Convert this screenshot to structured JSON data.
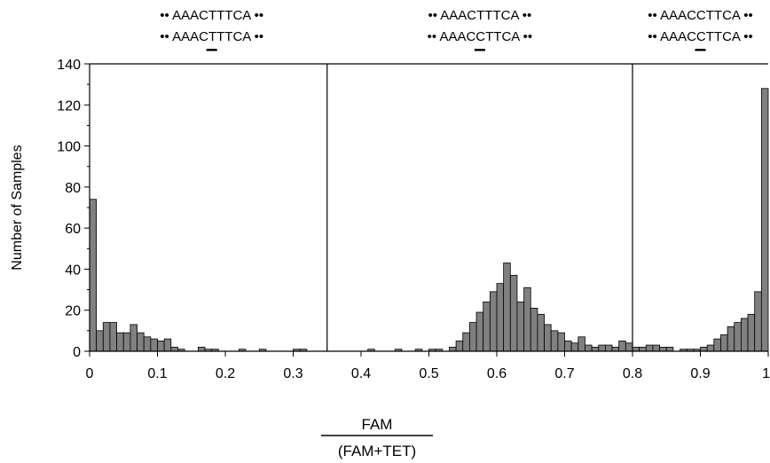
{
  "chart_data": {
    "type": "bar",
    "xlabel_numerator": "FAM",
    "xlabel_denominator": "(FAM+TET)",
    "ylabel": "Number of Samples",
    "xlim": [
      0,
      1
    ],
    "ylim": [
      0,
      140
    ],
    "x_ticks": [
      "0",
      "0.1",
      "0.2",
      "0.3",
      "0.4",
      "0.5",
      "0.6",
      "0.7",
      "0.8",
      "0.9",
      "1"
    ],
    "y_ticks": [
      "0",
      "20",
      "40",
      "60",
      "80",
      "100",
      "120",
      "140"
    ],
    "dividers": [
      0.35,
      0.8
    ],
    "bin_width": 0.01,
    "x": [
      0.0,
      0.01,
      0.02,
      0.03,
      0.04,
      0.05,
      0.06,
      0.07,
      0.08,
      0.09,
      0.1,
      0.11,
      0.12,
      0.13,
      0.14,
      0.15,
      0.16,
      0.17,
      0.18,
      0.19,
      0.2,
      0.21,
      0.22,
      0.23,
      0.24,
      0.25,
      0.26,
      0.27,
      0.28,
      0.29,
      0.3,
      0.31,
      0.32,
      0.33,
      0.34,
      0.35,
      0.36,
      0.37,
      0.38,
      0.39,
      0.4,
      0.41,
      0.42,
      0.43,
      0.44,
      0.45,
      0.46,
      0.47,
      0.48,
      0.49,
      0.5,
      0.51,
      0.52,
      0.53,
      0.54,
      0.55,
      0.56,
      0.57,
      0.58,
      0.59,
      0.6,
      0.61,
      0.62,
      0.63,
      0.64,
      0.65,
      0.66,
      0.67,
      0.68,
      0.69,
      0.7,
      0.71,
      0.72,
      0.73,
      0.74,
      0.75,
      0.76,
      0.77,
      0.78,
      0.79,
      0.8,
      0.81,
      0.82,
      0.83,
      0.84,
      0.85,
      0.86,
      0.87,
      0.88,
      0.89,
      0.9,
      0.91,
      0.92,
      0.93,
      0.94,
      0.95,
      0.96,
      0.97,
      0.98,
      0.99
    ],
    "values": [
      74,
      10,
      14,
      14,
      9,
      9,
      13,
      9,
      7,
      6,
      5,
      6,
      2,
      1,
      0,
      0,
      2,
      1,
      1,
      0,
      0,
      0,
      1,
      0,
      0,
      1,
      0,
      0,
      0,
      0,
      1,
      1,
      0,
      0,
      0,
      0,
      0,
      0,
      0,
      0,
      0,
      1,
      0,
      0,
      0,
      1,
      0,
      0,
      1,
      0,
      1,
      1,
      0,
      2,
      5,
      9,
      14,
      19,
      24,
      29,
      33,
      43,
      37,
      24,
      31,
      21,
      18,
      13,
      10,
      9,
      5,
      4,
      7,
      3,
      2,
      3,
      3,
      2,
      5,
      4,
      2,
      2,
      3,
      3,
      2,
      2,
      0,
      1,
      1,
      1,
      2,
      3,
      6,
      8,
      12,
      14,
      16,
      18,
      29,
      128
    ],
    "annotations": [
      {
        "lines": [
          "•• AAACTTTCA ••",
          "•• AAACTTTCA ••"
        ],
        "x": 0.18
      },
      {
        "lines": [
          "•• AAACTTTCA ••",
          "•• AAACCTTCA ••"
        ],
        "x": 0.575
      },
      {
        "lines": [
          "•• AAACCTTCA ••",
          "•• AAACCTTCA ••"
        ],
        "x": 0.9
      }
    ],
    "colors": {
      "bar_fill": "#808080",
      "bar_stroke": "#000000"
    }
  }
}
